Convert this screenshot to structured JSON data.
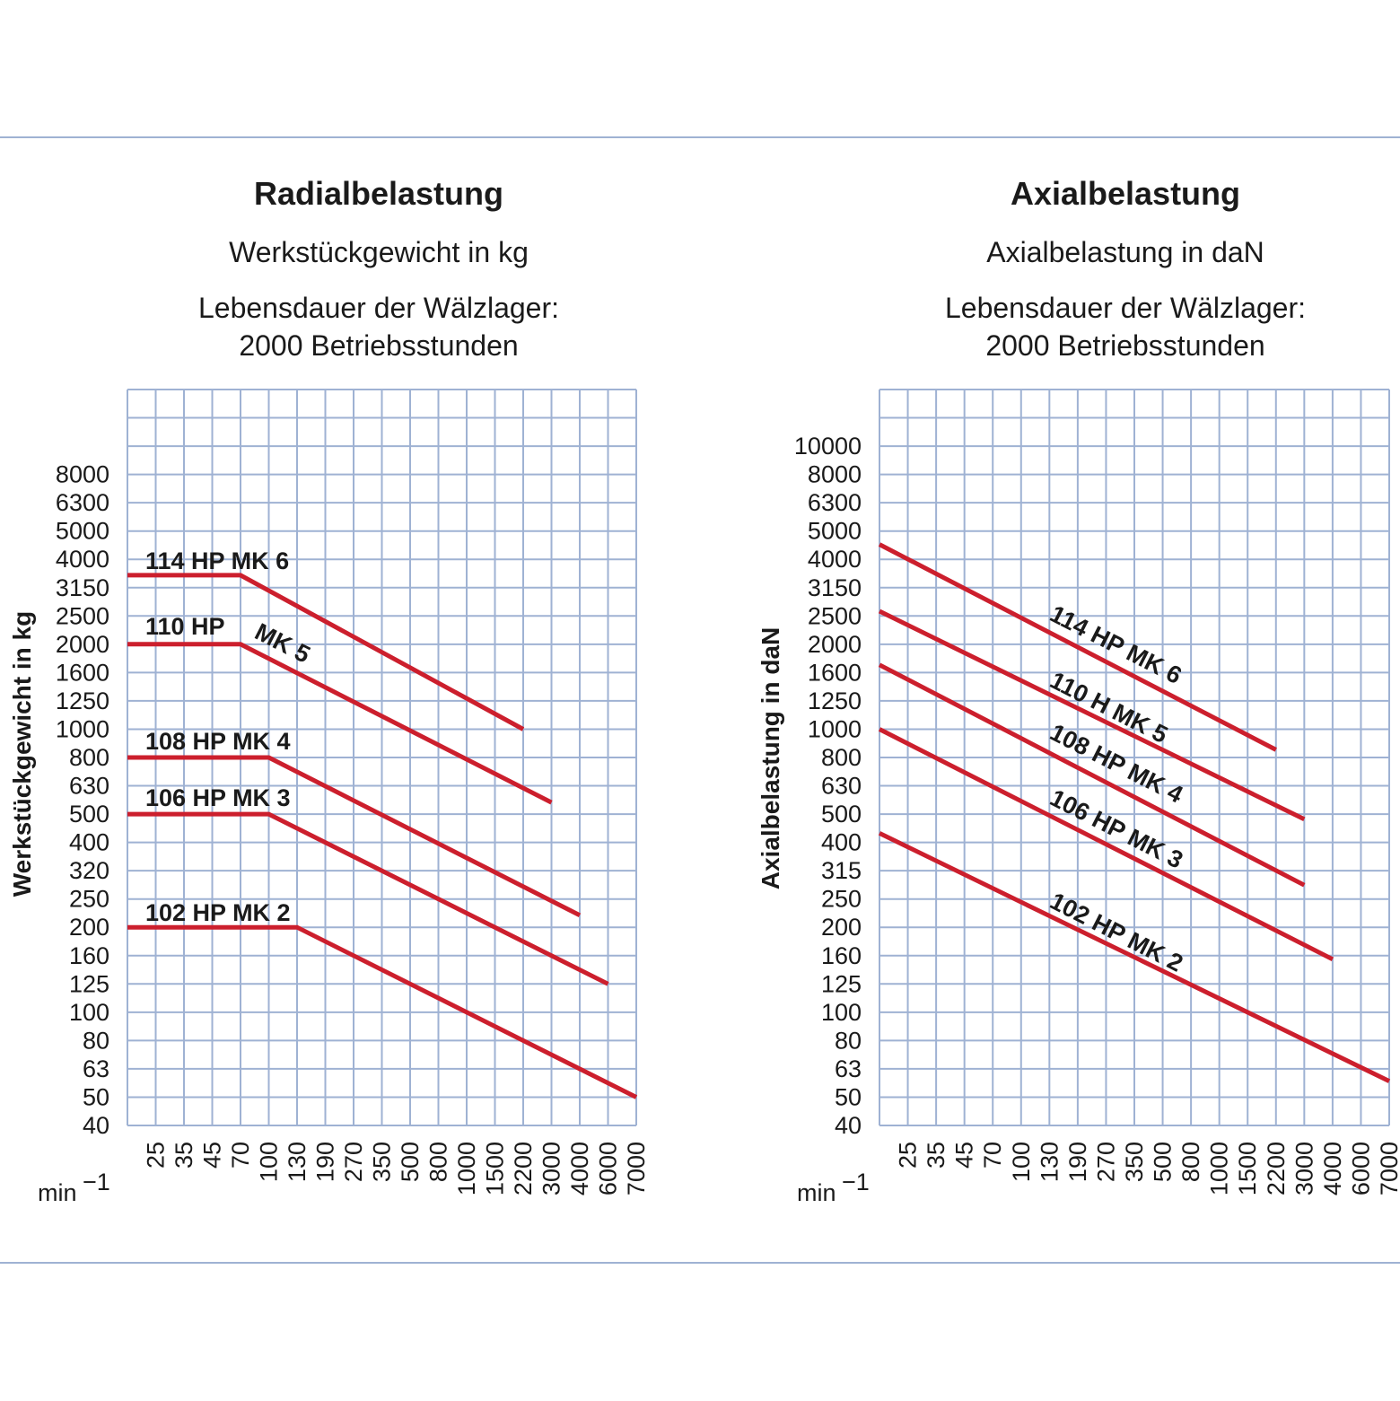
{
  "page": {
    "rule_color": "#9fb2d3",
    "grid_color": "#9fb2d3",
    "line_color": "#cc1f2d"
  },
  "chart_data": [
    {
      "type": "line",
      "title": "Radialbelastung",
      "subtitle": "Werkstückgewicht in kg",
      "note_line1": "Lebensdauer der Wälzlager:",
      "note_line2": "2000 Betriebsstunden",
      "ylabel": "Werkstückgewicht in kg",
      "xlabel": "min",
      "xlabel_sup": "−1",
      "x_ticks": [
        "25",
        "35",
        "45",
        "70",
        "100",
        "130",
        "190",
        "270",
        "350",
        "500",
        "800",
        "1000",
        "1500",
        "2200",
        "3000",
        "4000",
        "6000",
        "7000"
      ],
      "y_ticks": [
        "40",
        "50",
        "63",
        "80",
        "100",
        "125",
        "160",
        "200",
        "250",
        "320",
        "400",
        "500",
        "630",
        "800",
        "1000",
        "1250",
        "1600",
        "2000",
        "2500",
        "3150",
        "4000",
        "5000",
        "6300",
        "8000"
      ],
      "series": [
        {
          "name": "114 HP MK 6",
          "points": [
            [
              "",
              3500
            ],
            [
              "70",
              3500
            ],
            [
              "2200",
              1000
            ]
          ]
        },
        {
          "name": "110 HP",
          "name_extra": "MK 5",
          "points": [
            [
              "",
              2000
            ],
            [
              "70",
              2000
            ],
            [
              "3000",
              550
            ]
          ]
        },
        {
          "name": "108 HP MK 4",
          "points": [
            [
              "",
              800
            ],
            [
              "100",
              800
            ],
            [
              "4000",
              220
            ]
          ]
        },
        {
          "name": "106 HP MK 3",
          "points": [
            [
              "",
              500
            ],
            [
              "100",
              500
            ],
            [
              "6000",
              125
            ]
          ]
        },
        {
          "name": "102 HP MK 2",
          "points": [
            [
              "",
              200
            ],
            [
              "130",
              200
            ],
            [
              "7000",
              50
            ]
          ]
        }
      ]
    },
    {
      "type": "line",
      "title": "Axialbelastung",
      "subtitle": "Axialbelastung in daN",
      "note_line1": "Lebensdauer der Wälzlager:",
      "note_line2": "2000 Betriebsstunden",
      "ylabel": "Axialbelastung in daN",
      "xlabel": "min",
      "xlabel_sup": "−1",
      "x_ticks": [
        "25",
        "35",
        "45",
        "70",
        "100",
        "130",
        "190",
        "270",
        "350",
        "500",
        "800",
        "1000",
        "1500",
        "2200",
        "3000",
        "4000",
        "6000",
        "7000"
      ],
      "y_ticks": [
        "40",
        "50",
        "63",
        "80",
        "100",
        "125",
        "160",
        "200",
        "250",
        "315",
        "400",
        "500",
        "630",
        "800",
        "1000",
        "1250",
        "1600",
        "2000",
        "2500",
        "3150",
        "4000",
        "5000",
        "6300",
        "8000",
        "10000"
      ],
      "series": [
        {
          "name": "114 HP MK 6",
          "points": [
            [
              "",
              4500
            ],
            [
              "2200",
              850
            ]
          ]
        },
        {
          "name": "110 H MK 5",
          "points": [
            [
              "",
              2600
            ],
            [
              "3000",
              480
            ]
          ]
        },
        {
          "name": "108 HP MK 4",
          "points": [
            [
              "",
              1700
            ],
            [
              "3000",
              280
            ]
          ]
        },
        {
          "name": "106 HP MK 3",
          "points": [
            [
              "",
              1000
            ],
            [
              "4000",
              155
            ]
          ]
        },
        {
          "name": "102 HP MK 2",
          "points": [
            [
              "",
              430
            ],
            [
              "7000",
              57
            ]
          ]
        }
      ]
    }
  ]
}
